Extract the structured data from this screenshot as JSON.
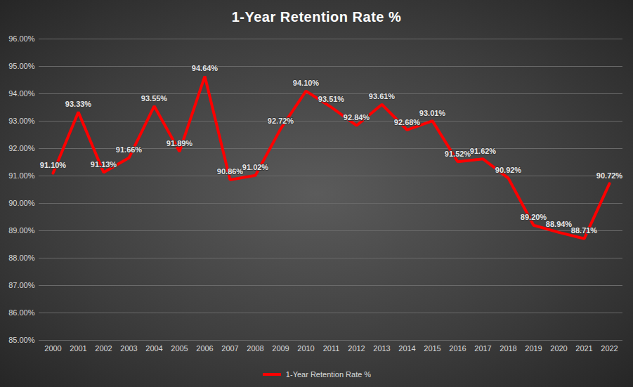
{
  "chart_data": {
    "type": "line",
    "title": "1-Year Retention Rate %",
    "categories": [
      "2000",
      "2001",
      "2002",
      "2003",
      "2004",
      "2005",
      "2006",
      "2007",
      "2008",
      "2009",
      "2010",
      "2011",
      "2012",
      "2013",
      "2014",
      "2015",
      "2016",
      "2017",
      "2018",
      "2019",
      "2020",
      "2021",
      "2022"
    ],
    "series": [
      {
        "name": "1-Year Retention Rate %",
        "color": "#ff0000",
        "values": [
          91.1,
          93.33,
          91.13,
          91.66,
          93.55,
          91.89,
          94.64,
          90.86,
          91.02,
          92.72,
          94.1,
          93.51,
          92.84,
          93.61,
          92.68,
          93.01,
          91.52,
          91.62,
          90.92,
          89.2,
          88.94,
          88.71,
          90.72
        ],
        "value_labels": [
          "91.10%",
          "93.33%",
          "91.13%",
          "91.66%",
          "93.55%",
          "91.89%",
          "94.64%",
          "90.86%",
          "91.02%",
          "92.72%",
          "94.10%",
          "93.51%",
          "92.84%",
          "93.61%",
          "92.68%",
          "93.01%",
          "91.52%",
          "91.62%",
          "90.92%",
          "89.20%",
          "88.94%",
          "88.71%",
          "90.72%"
        ]
      }
    ],
    "ylim": [
      85,
      96
    ],
    "yticks": [
      {
        "value": 85,
        "label": "85.00%"
      },
      {
        "value": 86,
        "label": "86.00%"
      },
      {
        "value": 87,
        "label": "87.00%"
      },
      {
        "value": 88,
        "label": "88.00%"
      },
      {
        "value": 89,
        "label": "89.00%"
      },
      {
        "value": 90,
        "label": "90.00%"
      },
      {
        "value": 91,
        "label": "91.00%"
      },
      {
        "value": 92,
        "label": "92.00%"
      },
      {
        "value": 93,
        "label": "93.00%"
      },
      {
        "value": 94,
        "label": "94.00%"
      },
      {
        "value": 95,
        "label": "95.00%"
      },
      {
        "value": 96,
        "label": "96.00%"
      }
    ],
    "grid": true,
    "legend": "bottom",
    "data_labels": true
  }
}
